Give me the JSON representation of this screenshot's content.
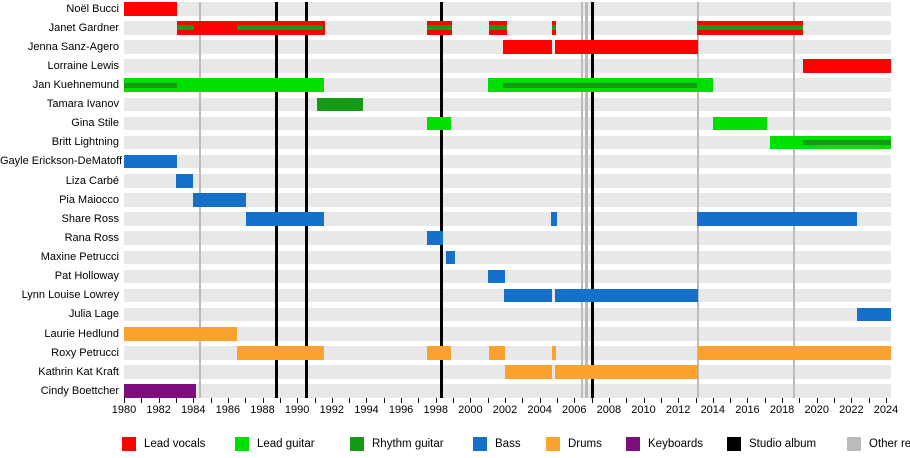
{
  "chart_data": {
    "type": "timeline",
    "x_axis": {
      "start_year": 1980,
      "end_year": 2024,
      "label_step": 2,
      "minor_tick_step": 1,
      "tick_labels": [
        "1980",
        "1982",
        "1984",
        "1986",
        "1988",
        "1990",
        "1992",
        "1994",
        "1996",
        "1998",
        "2000",
        "2002",
        "2004",
        "2006",
        "2008",
        "2010",
        "2012",
        "2014",
        "2016",
        "2018",
        "2020",
        "2022",
        "2024"
      ]
    },
    "legend": [
      {
        "key": "lead_vocals",
        "label": "Lead vocals",
        "color": "#FF0000"
      },
      {
        "key": "lead_guitar",
        "label": "Lead guitar",
        "color": "#00E000"
      },
      {
        "key": "rhythm_guitar",
        "label": "Rhythm guitar",
        "color": "#149A14"
      },
      {
        "key": "bass",
        "label": "Bass",
        "color": "#1470C8"
      },
      {
        "key": "drums",
        "label": "Drums",
        "color": "#FAA22D"
      },
      {
        "key": "keyboards",
        "label": "Keyboards",
        "color": "#7D0C7D"
      },
      {
        "key": "studio_album",
        "label": "Studio album",
        "color": "#000000"
      },
      {
        "key": "other_release",
        "label": "Other releases",
        "color": "#BBBBBB"
      }
    ],
    "members": [
      {
        "name": "Noël Bucci",
        "segments": [
          {
            "role": "lead_vocals",
            "start": 1980.0,
            "end": 1983.05
          }
        ]
      },
      {
        "name": "Janet Gardner",
        "segments": [
          {
            "role": "lead_vocals",
            "start": 1983.05,
            "end": 1991.6,
            "overlay": {
              "role": "rhythm_guitar",
              "ranges": [
                [
                  1983.05,
                  1984.05
                ],
                [
                  1986.5,
                  1991.5
                ]
              ]
            }
          },
          {
            "role": "lead_vocals",
            "start": 1997.5,
            "end": 1998.95,
            "overlay": {
              "role": "rhythm_guitar",
              "ranges": [
                [
                  1997.5,
                  1998.95
                ]
              ]
            }
          },
          {
            "role": "lead_vocals",
            "start": 2001.05,
            "end": 2002.1,
            "overlay": {
              "role": "rhythm_guitar",
              "ranges": [
                [
                  2001.05,
                  2002.1
                ]
              ]
            }
          },
          {
            "role": "lead_vocals",
            "start": 2004.7,
            "end": 2004.95,
            "overlay": {
              "role": "rhythm_guitar",
              "ranges": [
                [
                  2004.7,
                  2004.95
                ]
              ]
            }
          },
          {
            "role": "lead_vocals",
            "start": 2013.1,
            "end": 2019.2,
            "overlay": {
              "role": "rhythm_guitar",
              "ranges": [
                [
                  2013.1,
                  2019.2
                ]
              ]
            }
          }
        ]
      },
      {
        "name": "Jenna Sanz-Agero",
        "segments": [
          {
            "role": "lead_vocals",
            "start": 2001.9,
            "end": 2004.72
          },
          {
            "role": "lead_vocals",
            "start": 2004.9,
            "end": 2013.15
          }
        ]
      },
      {
        "name": "Lorraine Lewis",
        "segments": [
          {
            "role": "lead_vocals",
            "start": 2019.2,
            "end": 2024.3
          }
        ]
      },
      {
        "name": "Jan Kuehnemund",
        "segments": [
          {
            "role": "lead_guitar",
            "start": 1980.0,
            "end": 1991.55,
            "overlay": {
              "role": "rhythm_guitar",
              "ranges": [
                [
                  1980.0,
                  1983.05
                ]
              ]
            }
          },
          {
            "role": "lead_guitar",
            "start": 2001.0,
            "end": 2014.0,
            "overlay": {
              "role": "rhythm_guitar",
              "ranges": [
                [
                  2001.9,
                  2013.1
                ]
              ]
            }
          }
        ]
      },
      {
        "name": "Tamara Ivanov",
        "segments": [
          {
            "role": "rhythm_guitar",
            "start": 1991.15,
            "end": 1993.8
          }
        ]
      },
      {
        "name": "Gina Stile",
        "segments": [
          {
            "role": "lead_guitar",
            "start": 1997.5,
            "end": 1998.9
          },
          {
            "role": "lead_guitar",
            "start": 2014.0,
            "end": 2017.15
          }
        ]
      },
      {
        "name": "Britt Lightning",
        "segments": [
          {
            "role": "lead_guitar",
            "start": 2017.3,
            "end": 2024.3,
            "overlay": {
              "role": "rhythm_guitar",
              "ranges": [
                [
                  2019.2,
                  2024.3
                ]
              ]
            }
          }
        ]
      },
      {
        "name": "Gayle Erickson-DeMatoff",
        "segments": [
          {
            "role": "bass",
            "start": 1980.0,
            "end": 1983.05
          }
        ]
      },
      {
        "name": "Liza Carbé",
        "segments": [
          {
            "role": "bass",
            "start": 1983.0,
            "end": 1984.0
          }
        ]
      },
      {
        "name": "Pia Maiocco",
        "segments": [
          {
            "role": "bass",
            "start": 1984.0,
            "end": 1987.05
          }
        ]
      },
      {
        "name": "Share Ross",
        "segments": [
          {
            "role": "bass",
            "start": 1987.05,
            "end": 1991.55
          },
          {
            "role": "bass",
            "start": 2004.67,
            "end": 2005.0
          },
          {
            "role": "bass",
            "start": 2013.1,
            "end": 2022.35
          }
        ]
      },
      {
        "name": "Rana Ross",
        "segments": [
          {
            "role": "bass",
            "start": 1997.5,
            "end": 1998.4
          }
        ]
      },
      {
        "name": "Maxine Petrucci",
        "segments": [
          {
            "role": "bass",
            "start": 1998.6,
            "end": 1999.1
          }
        ]
      },
      {
        "name": "Pat Holloway",
        "segments": [
          {
            "role": "bass",
            "start": 2001.0,
            "end": 2002.0
          }
        ]
      },
      {
        "name": "Lynn Louise Lowrey",
        "segments": [
          {
            "role": "bass",
            "start": 2001.95,
            "end": 2004.72
          },
          {
            "role": "bass",
            "start": 2004.9,
            "end": 2013.15
          }
        ]
      },
      {
        "name": "Julia Lage",
        "segments": [
          {
            "role": "bass",
            "start": 2022.35,
            "end": 2024.3
          }
        ]
      },
      {
        "name": "Laurie Hedlund",
        "segments": [
          {
            "role": "drums",
            "start": 1980.0,
            "end": 1986.55
          }
        ]
      },
      {
        "name": "Roxy Petrucci",
        "segments": [
          {
            "role": "drums",
            "start": 1986.55,
            "end": 1991.55
          },
          {
            "role": "drums",
            "start": 1997.5,
            "end": 1998.9
          },
          {
            "role": "drums",
            "start": 2001.1,
            "end": 2002.0
          },
          {
            "role": "drums",
            "start": 2004.7,
            "end": 2004.95
          },
          {
            "role": "drums",
            "start": 2013.15,
            "end": 2024.3
          }
        ]
      },
      {
        "name": "Kathrin Kat Kraft",
        "segments": [
          {
            "role": "drums",
            "start": 2002.0,
            "end": 2004.72
          },
          {
            "role": "drums",
            "start": 2004.9,
            "end": 2013.15
          }
        ]
      },
      {
        "name": "Cindy Boettcher",
        "segments": [
          {
            "role": "keyboards",
            "start": 1980.0,
            "end": 1984.15
          }
        ]
      }
    ],
    "events": {
      "studio_albums": [
        1988.8,
        1990.55,
        1998.35,
        2007.05
      ],
      "other_releases": [
        1984.4,
        2006.45,
        2006.7,
        2013.15,
        2018.7
      ]
    }
  }
}
